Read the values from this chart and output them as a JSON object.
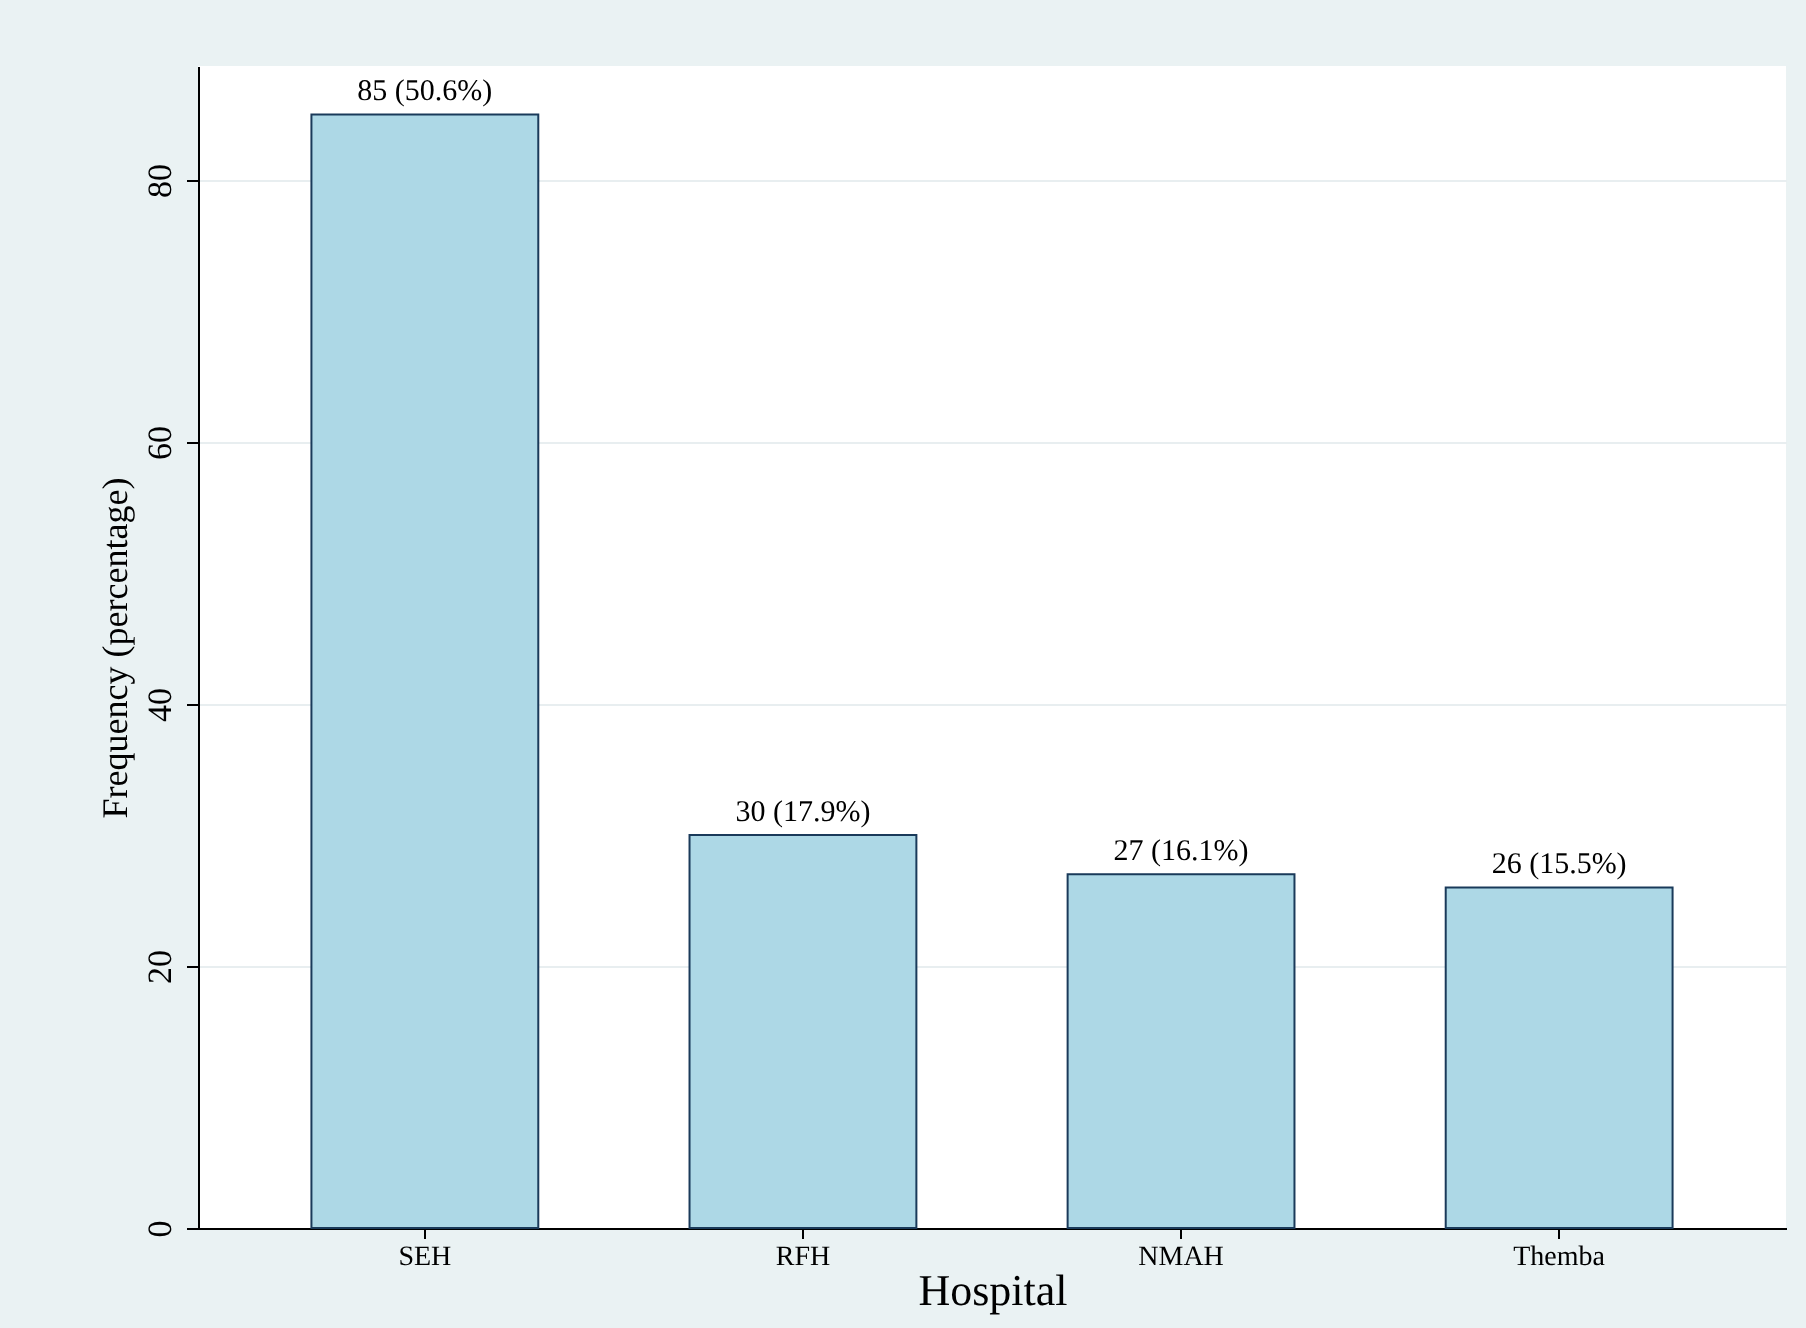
{
  "chart_data": {
    "type": "bar",
    "xlabel": "Hospital",
    "ylabel": "Frequency (percentage)",
    "categories": [
      "SEH",
      "RFH",
      "NMAH",
      "Themba"
    ],
    "values": [
      85,
      30,
      27,
      26
    ],
    "value_labels": [
      "85 (50.6%)",
      "30 (17.9%)",
      "27 (16.1%)",
      "26 (15.5%)"
    ],
    "color": "#add8e6",
    "ylim": [
      0,
      88.7
    ],
    "yticks": [
      0,
      20,
      40,
      60,
      80
    ],
    "grid": "y"
  }
}
